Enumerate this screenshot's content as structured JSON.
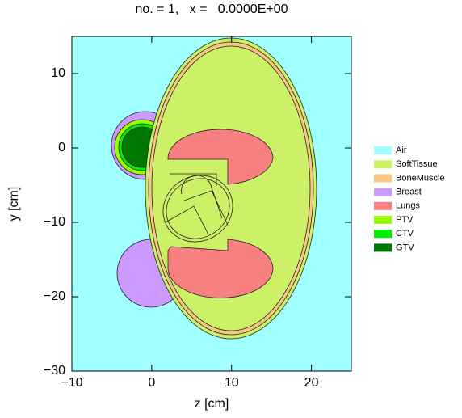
{
  "chart_data": {
    "type": "region-map",
    "title": "no. = 1,   x =   0.0000E+00",
    "x_label": "z [cm]",
    "y_label": "y [cm]",
    "xlim": [
      -10,
      25
    ],
    "ylim": [
      -30,
      15
    ],
    "xticks": [
      {
        "value": -10,
        "label": "−10"
      },
      0,
      10,
      20
    ],
    "yticks": [
      {
        "value": -30,
        "label": "−30"
      },
      {
        "value": -20,
        "label": "−20"
      },
      {
        "value": -10,
        "label": "−10"
      },
      0,
      10
    ],
    "legend": [
      {
        "label": "Air",
        "color": "#a0ffff"
      },
      {
        "label": "SoftTissue",
        "color": "#ccf066"
      },
      {
        "label": "BoneMuscle",
        "color": "#f8c880"
      },
      {
        "label": "Breast",
        "color": "#cc99ff"
      },
      {
        "label": "Lungs",
        "color": "#f88080"
      },
      {
        "label": "PTV",
        "color": "#99ff00"
      },
      {
        "label": "CTV",
        "color": "#00ee00"
      },
      {
        "label": "GTV",
        "color": "#007700"
      }
    ]
  }
}
